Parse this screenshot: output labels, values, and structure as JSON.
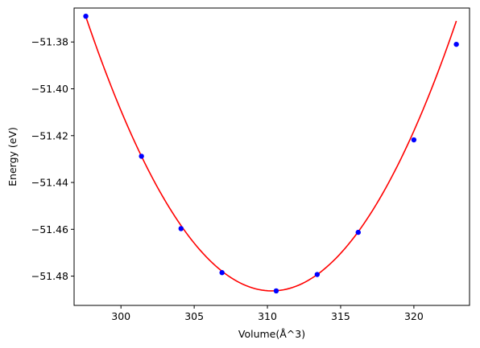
{
  "chart_data": {
    "type": "scatter",
    "xlabel": "Volume(Å^3)",
    "ylabel": "Energy (eV)",
    "xlim": [
      296.8,
      323.8
    ],
    "ylim": [
      -51.4925,
      -51.3655
    ],
    "xticks": [
      300,
      305,
      310,
      315,
      320
    ],
    "xtick_labels": [
      "300",
      "305",
      "310",
      "315",
      "320"
    ],
    "yticks": [
      -51.48,
      -51.46,
      -51.44,
      -51.42,
      -51.4,
      -51.38
    ],
    "ytick_labels": [
      "−51.48",
      "−51.46",
      "−51.44",
      "−51.42",
      "−51.40",
      "−51.38"
    ],
    "grid": false,
    "series": [
      {
        "type": "scatter",
        "color": "#0000ff",
        "x": [
          297.6,
          301.4,
          304.1,
          306.9,
          310.6,
          313.4,
          316.2,
          320.0,
          322.9
        ],
        "y": [
          -51.369,
          -51.4288,
          -51.4597,
          -51.4785,
          -51.4863,
          -51.4793,
          -51.4613,
          -51.4218,
          -51.381
        ]
      },
      {
        "type": "line",
        "color": "#ff0000",
        "fit": {
          "kind": "quadratic",
          "vertex_x": 310.3,
          "vertex_y": -51.4863,
          "curvature": 0.000726,
          "x_range": [
            297.6,
            322.9
          ]
        }
      }
    ]
  }
}
